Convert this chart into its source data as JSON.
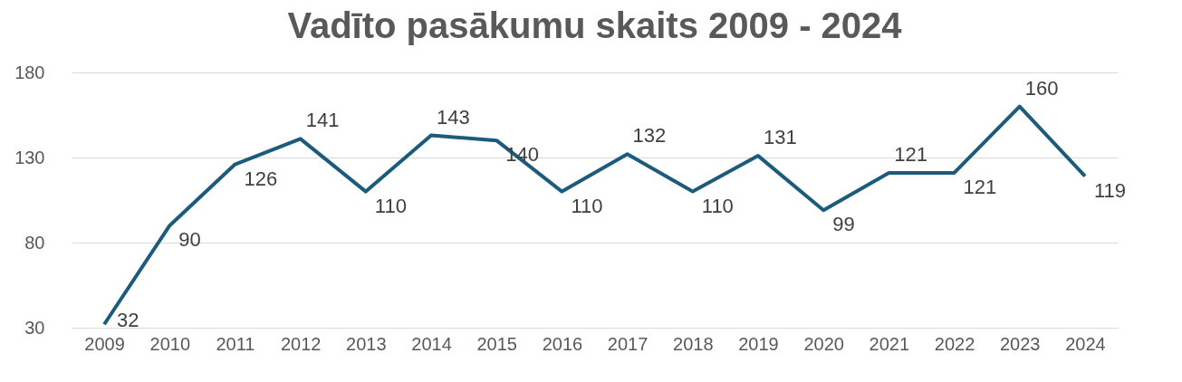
{
  "chart_data": {
    "type": "line",
    "title": "Vadīto pasākumu skaits 2009 - 2024",
    "categories": [
      "2009",
      "2010",
      "2011",
      "2012",
      "2013",
      "2014",
      "2015",
      "2016",
      "2017",
      "2018",
      "2019",
      "2020",
      "2021",
      "2022",
      "2023",
      "2024"
    ],
    "series": [
      {
        "color": "#1c5b7c",
        "values": [
          32,
          90,
          126,
          141,
          110,
          143,
          140,
          110,
          132,
          110,
          131,
          99,
          121,
          121,
          160,
          119
        ]
      }
    ],
    "ylim": [
      30,
      180
    ],
    "yticks": [
      30,
      80,
      130,
      180
    ],
    "grid": "y",
    "data_labels": true
  }
}
